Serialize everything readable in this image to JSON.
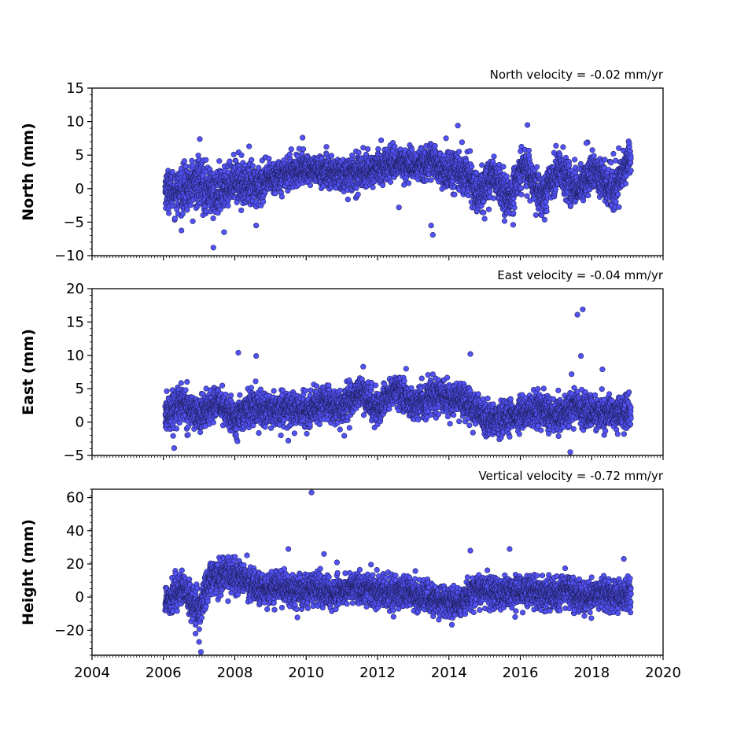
{
  "chart_data": [
    {
      "type": "scatter",
      "panel": "north",
      "velocity_label": "North velocity = -0.02 mm/yr",
      "ylabel": "North (mm)",
      "xlim": [
        2004,
        2020
      ],
      "ylim": [
        -10,
        15
      ],
      "y_ticks": [
        -10,
        -5,
        0,
        5,
        10,
        15
      ],
      "y_tick_labels": [
        "−10",
        "−5",
        "0",
        "5",
        "10",
        "15"
      ],
      "x_ticks": [
        2004,
        2006,
        2008,
        2010,
        2012,
        2014,
        2016,
        2018,
        2020
      ],
      "data_range": [
        2006.05,
        2019.1
      ],
      "density_per_year": 320,
      "band": [
        [
          2006.05,
          0.0,
          1.8
        ],
        [
          2006.5,
          -0.5,
          2.2
        ],
        [
          2007.0,
          1.0,
          2.4
        ],
        [
          2007.5,
          -1.0,
          2.2
        ],
        [
          2008.0,
          1.5,
          1.8
        ],
        [
          2008.5,
          0.0,
          2.2
        ],
        [
          2009.0,
          1.5,
          1.6
        ],
        [
          2009.5,
          2.5,
          1.5
        ],
        [
          2010.0,
          3.0,
          1.5
        ],
        [
          2010.5,
          2.5,
          1.6
        ],
        [
          2011.0,
          2.0,
          1.6
        ],
        [
          2011.5,
          2.5,
          1.6
        ],
        [
          2012.0,
          3.0,
          1.6
        ],
        [
          2012.5,
          4.0,
          1.5
        ],
        [
          2013.0,
          3.5,
          1.6
        ],
        [
          2013.5,
          4.0,
          1.6
        ],
        [
          2014.0,
          2.5,
          1.8
        ],
        [
          2014.5,
          2.5,
          1.8
        ],
        [
          2014.8,
          -1.0,
          2.0
        ],
        [
          2015.2,
          2.0,
          1.8
        ],
        [
          2015.7,
          -1.5,
          2.0
        ],
        [
          2016.1,
          3.5,
          1.8
        ],
        [
          2016.6,
          -1.0,
          2.0
        ],
        [
          2017.1,
          3.0,
          1.8
        ],
        [
          2017.6,
          -0.5,
          2.0
        ],
        [
          2018.0,
          2.5,
          1.8
        ],
        [
          2018.6,
          0.0,
          2.0
        ],
        [
          2019.1,
          4.5,
          1.6
        ]
      ],
      "outliers": [
        [
          2007.02,
          7.4
        ],
        [
          2007.4,
          -8.8
        ],
        [
          2007.7,
          -6.5
        ],
        [
          2008.4,
          6.3
        ],
        [
          2008.6,
          -5.5
        ],
        [
          2009.9,
          7.6
        ],
        [
          2012.6,
          -2.8
        ],
        [
          2013.5,
          -5.5
        ],
        [
          2013.55,
          -6.9
        ],
        [
          2014.25,
          9.4
        ],
        [
          2015.8,
          -5.4
        ],
        [
          2016.2,
          9.5
        ],
        [
          2017.0,
          6.4
        ],
        [
          2017.85,
          6.8
        ],
        [
          2015.0,
          -4.5
        ]
      ]
    },
    {
      "type": "scatter",
      "panel": "east",
      "velocity_label": "East velocity = -0.04 mm/yr",
      "ylabel": "East (mm)",
      "xlim": [
        2004,
        2020
      ],
      "ylim": [
        -5,
        20
      ],
      "y_ticks": [
        -5,
        0,
        5,
        10,
        15,
        20
      ],
      "y_tick_labels": [
        "−5",
        "0",
        "5",
        "10",
        "15",
        "20"
      ],
      "x_ticks": [
        2004,
        2006,
        2008,
        2010,
        2012,
        2014,
        2016,
        2018,
        2020
      ],
      "data_range": [
        2006.05,
        2019.1
      ],
      "density_per_year": 320,
      "band": [
        [
          2006.05,
          1.0,
          1.8
        ],
        [
          2006.5,
          3.0,
          1.8
        ],
        [
          2007.0,
          1.0,
          1.6
        ],
        [
          2007.5,
          3.0,
          1.6
        ],
        [
          2008.0,
          0.5,
          1.6
        ],
        [
          2008.5,
          2.5,
          1.6
        ],
        [
          2009.0,
          1.5,
          1.6
        ],
        [
          2009.5,
          2.0,
          1.6
        ],
        [
          2010.0,
          1.5,
          1.6
        ],
        [
          2010.5,
          3.0,
          1.6
        ],
        [
          2011.0,
          2.0,
          1.6
        ],
        [
          2011.5,
          4.5,
          1.6
        ],
        [
          2012.0,
          2.0,
          1.6
        ],
        [
          2012.5,
          5.0,
          1.6
        ],
        [
          2013.0,
          2.5,
          1.6
        ],
        [
          2013.5,
          4.0,
          1.6
        ],
        [
          2014.0,
          3.5,
          1.6
        ],
        [
          2014.5,
          3.0,
          1.6
        ],
        [
          2015.0,
          0.5,
          1.6
        ],
        [
          2015.5,
          0.5,
          1.6
        ],
        [
          2016.0,
          1.0,
          1.6
        ],
        [
          2016.5,
          2.0,
          1.6
        ],
        [
          2017.0,
          1.0,
          1.6
        ],
        [
          2017.5,
          2.5,
          1.6
        ],
        [
          2018.0,
          1.5,
          1.6
        ],
        [
          2018.5,
          1.5,
          1.6
        ],
        [
          2019.1,
          1.0,
          1.6
        ]
      ],
      "outliers": [
        [
          2006.3,
          -3.9
        ],
        [
          2008.1,
          10.4
        ],
        [
          2008.6,
          9.9
        ],
        [
          2011.6,
          8.3
        ],
        [
          2012.8,
          8.0
        ],
        [
          2014.6,
          10.2
        ],
        [
          2017.4,
          -4.5
        ],
        [
          2017.6,
          16.1
        ],
        [
          2017.75,
          16.9
        ],
        [
          2017.7,
          9.9
        ],
        [
          2018.3,
          7.9
        ],
        [
          2009.5,
          -2.8
        ]
      ]
    },
    {
      "type": "scatter",
      "panel": "height",
      "velocity_label": "Vertical velocity = -0.72 mm/yr",
      "ylabel": "Height (mm)",
      "xlim": [
        2004,
        2020
      ],
      "ylim": [
        -35,
        65
      ],
      "y_ticks": [
        -20,
        0,
        20,
        40,
        60
      ],
      "y_tick_labels": [
        "−20",
        "0",
        "20",
        "40",
        "60"
      ],
      "x_ticks": [
        2004,
        2006,
        2008,
        2010,
        2012,
        2014,
        2016,
        2018,
        2020
      ],
      "x_tick_labels": [
        "2004",
        "2006",
        "2008",
        "2010",
        "2012",
        "2014",
        "2016",
        "2018",
        "2020"
      ],
      "data_range": [
        2006.05,
        2019.1
      ],
      "density_per_year": 320,
      "band": [
        [
          2006.05,
          -2.0,
          7.0
        ],
        [
          2006.5,
          5.0,
          7.0
        ],
        [
          2007.0,
          -8.0,
          7.0
        ],
        [
          2007.3,
          10.0,
          7.0
        ],
        [
          2007.8,
          15.0,
          7.0
        ],
        [
          2008.3,
          10.0,
          6.5
        ],
        [
          2008.8,
          4.0,
          6.0
        ],
        [
          2009.3,
          6.0,
          6.0
        ],
        [
          2009.8,
          3.0,
          6.0
        ],
        [
          2010.3,
          5.0,
          6.0
        ],
        [
          2010.8,
          2.0,
          6.0
        ],
        [
          2011.3,
          6.0,
          6.0
        ],
        [
          2011.8,
          5.0,
          6.0
        ],
        [
          2012.3,
          2.0,
          6.0
        ],
        [
          2012.8,
          3.0,
          6.0
        ],
        [
          2013.3,
          0.0,
          6.0
        ],
        [
          2013.8,
          -2.0,
          6.0
        ],
        [
          2014.3,
          -4.0,
          6.0
        ],
        [
          2014.8,
          5.0,
          6.0
        ],
        [
          2015.3,
          2.0,
          6.0
        ],
        [
          2015.8,
          3.0,
          6.0
        ],
        [
          2016.3,
          4.0,
          6.0
        ],
        [
          2016.8,
          1.0,
          6.0
        ],
        [
          2017.3,
          5.0,
          6.0
        ],
        [
          2017.8,
          -1.0,
          6.0
        ],
        [
          2018.3,
          3.0,
          6.0
        ],
        [
          2018.8,
          0.0,
          6.0
        ],
        [
          2019.1,
          2.0,
          6.0
        ]
      ],
      "outliers": [
        [
          2010.15,
          63.0
        ],
        [
          2007.0,
          -27.0
        ],
        [
          2007.05,
          -33.0
        ],
        [
          2006.9,
          -22.0
        ],
        [
          2010.5,
          26.0
        ],
        [
          2014.6,
          28.0
        ],
        [
          2015.7,
          29.0
        ],
        [
          2009.5,
          29.0
        ],
        [
          2018.9,
          23.0
        ]
      ]
    }
  ]
}
